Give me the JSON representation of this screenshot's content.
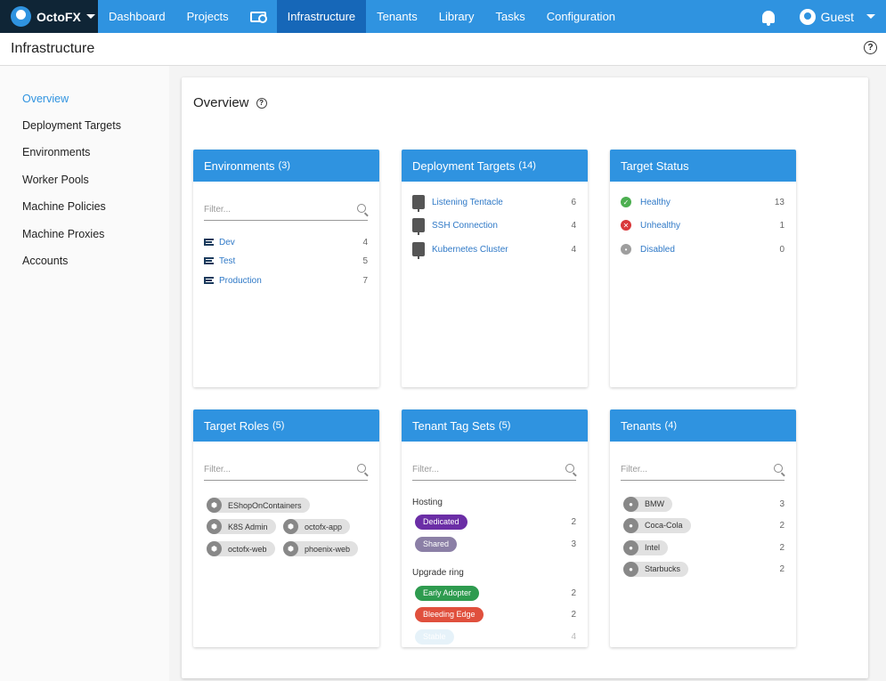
{
  "nav": {
    "brand": "OctoFX",
    "items": [
      "Dashboard",
      "Projects",
      "Infrastructure",
      "Tenants",
      "Library",
      "Tasks",
      "Configuration"
    ],
    "user": "Guest"
  },
  "page": {
    "title": "Infrastructure",
    "overview": "Overview"
  },
  "sidebar": [
    "Overview",
    "Deployment Targets",
    "Environments",
    "Worker Pools",
    "Machine Policies",
    "Machine Proxies",
    "Accounts"
  ],
  "filter_placeholder": "Filter...",
  "environments": {
    "title": "Environments",
    "count": "(3)",
    "items": [
      {
        "name": "Dev",
        "count": "4"
      },
      {
        "name": "Test",
        "count": "5"
      },
      {
        "name": "Production",
        "count": "7"
      }
    ]
  },
  "deployment_targets": {
    "title": "Deployment Targets",
    "count": "(14)",
    "items": [
      {
        "name": "Listening Tentacle",
        "count": "6"
      },
      {
        "name": "SSH Connection",
        "count": "4"
      },
      {
        "name": "Kubernetes Cluster",
        "count": "4"
      }
    ]
  },
  "target_status": {
    "title": "Target Status",
    "items": [
      {
        "name": "Healthy",
        "count": "13",
        "color": "#4caf50"
      },
      {
        "name": "Unhealthy",
        "count": "1",
        "color": "#d9383a"
      },
      {
        "name": "Disabled",
        "count": "0",
        "color": "#9e9e9e"
      }
    ]
  },
  "target_roles": {
    "title": "Target Roles",
    "count": "(5)",
    "items": [
      "EShopOnContainers",
      "K8S Admin",
      "octofx-app",
      "octofx-web",
      "phoenix-web"
    ]
  },
  "tenant_tag_sets": {
    "title": "Tenant Tag Sets",
    "count": "(5)",
    "groups": [
      {
        "name": "Hosting",
        "tags": [
          {
            "name": "Dedicated",
            "count": "2",
            "color": "#6b2ea6"
          },
          {
            "name": "Shared",
            "count": "3",
            "color": "#8b7fa6"
          }
        ]
      },
      {
        "name": "Upgrade ring",
        "tags": [
          {
            "name": "Early Adopter",
            "count": "2",
            "color": "#2e9b4f"
          },
          {
            "name": "Bleeding Edge",
            "count": "2",
            "color": "#e0503d"
          },
          {
            "name": "Stable",
            "count": "4",
            "color": "#c9e4f2"
          }
        ]
      }
    ]
  },
  "tenants": {
    "title": "Tenants",
    "count": "(4)",
    "items": [
      {
        "name": "BMW",
        "count": "3"
      },
      {
        "name": "Coca-Cola",
        "count": "2"
      },
      {
        "name": "Intel",
        "count": "2"
      },
      {
        "name": "Starbucks",
        "count": "2"
      }
    ]
  }
}
